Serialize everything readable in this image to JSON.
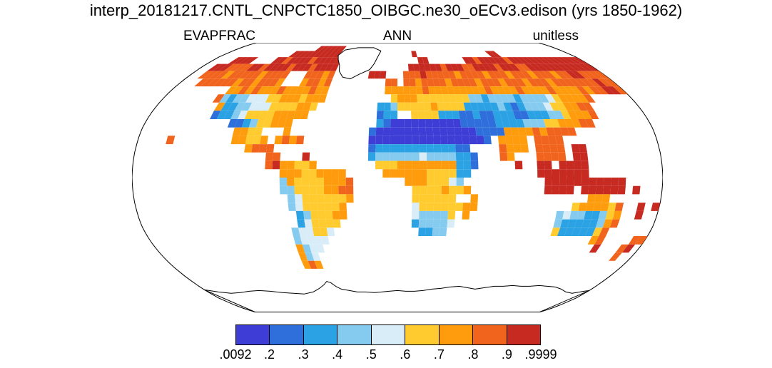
{
  "title": "interp_20181217.CNTL_CNPCTC1850_OIBGC.ne30_oECv3.edison (yrs 1850-1962)",
  "header": {
    "variable": "EVAPFRAC",
    "season": "ANN",
    "units": "unitless"
  },
  "chart_data": {
    "type": "heatmap",
    "title": "interp_20181217.CNTL_CNPCTC1850_OIBGC.ne30_oECv3.edison (yrs 1850-1962)",
    "variable": "EVAPFRAC",
    "season": "ANN",
    "units": "unitless",
    "projection": "robinson",
    "colorbar": {
      "levels": [
        ".0092",
        ".2",
        ".3",
        ".4",
        ".5",
        ".6",
        ".7",
        ".8",
        ".9",
        ".9999"
      ],
      "colors": [
        "#3E3ED6",
        "#2F6FDB",
        "#2BA2E3",
        "#85CBEF",
        "#D8EDF8",
        "#FFCB2E",
        "#FF9C0D",
        "#F1641E",
        "#C62A21"
      ]
    },
    "grid": {
      "lon_min": -180,
      "lon_step_deg": 5,
      "lat_max": 90,
      "lat_step_deg": 5,
      "cell_encoding": "each row = 6 groups of 12 chars (72 columns of 5 deg, lon -180..180; rows lat 90..-90); '.' = ocean/ice/no data; digits 1-9 = colorbar bin index from lowest (.0092-.2, dark blue) to highest (.9-.9999, red)",
      "rows": [
        [
          "............",
          "............",
          "............",
          "............",
          "............",
          "............"
        ],
        [
          "............",
          "......999999",
          "............",
          "............",
          "............",
          "............"
        ],
        [
          "............",
          "..9999999999",
          "............",
          "...9........",
          ".......99...",
          "............"
        ],
        [
          "....9999....",
          "998999989999",
          "9...........",
          "....99......",
          ".99899999899",
          "999999999999"
        ],
        [
          "..9998888998",
          "999989998999",
          "9...........",
          "..9999998999",
          "889999899988",
          "999999999999"
        ],
        [
          "..8888788888",
          "78888...8887",
          "8......999..",
          ".88898888878",
          "888788878887",
          "888788998888"
        ],
        [
          "...888888788",
          "78887...7887",
          "8.........88",
          ".88788887888",
          "878887888788",
          "878888888988"
        ],
        [
          ".........778",
          "787778777787",
          "7.........77",
          "777787777777",
          "778777787777",
          "877778788998"
        ],
        [
          "........8434",
          "455566777677",
          "7..........6",
          "777666666664",
          "434444344445",
          "677778......"
        ],
        [
          ".........733",
          "445556666776",
          ".........334",
          "666667666633",
          "333432344456",
          "67788......."
        ],
        [
          ".........233",
          "45666677777.",
          ".........233",
          "..6666333223",
          "223332233344",
          "67778......."
        ],
        [
          "............",
          "223466777...",
          ".........321",
          "111111111222",
          "223333444667",
          "7788........"
        ],
        [
          "............",
          ".7766...7...",
          "........2111",
          "111111111112",
          "222777787888",
          "8..........."
        ],
        [
          "....8.......",
          ".77667.7878.",
          "........1111",
          "111111111111",
          "2.7777.8888.",
          "............"
        ],
        [
          "............",
          "...7888.....",
          "........2333",
          "3333333322..",
          "..8777.8888.",
          "99.........."
        ],
        [
          "............",
          "......88...9",
          "........3444",
          "44454444332.",
          "..87...8888.",
          "99.........."
        ],
        [
          "............",
          "......897766",
          "7........666",
          "77777777332.",
          "....9..99.99",
          "99.........."
        ],
        [
          "............",
          "........7776",
          "67777.....77",
          "7777666633..",
          ".......99999",
          "99.........."
        ],
        [
          "............",
          "........4766",
          "667778......",
          ".77766654...",
          "........9999",
          "9999999....."
        ],
        [
          "............",
          "........4466",
          "667788......",
          "..66667667..",
          "........9999",
          ".999999.9..."
        ],
        [
          "............",
          ".........456",
          "666667......",
          "..666666..7.",
          "............",
          "..777......."
        ],
        [
          "............",
          ".........456",
          "66667.......",
          "..566666677.",
          "............",
          "6777768..9.9"
        ],
        [
          "............",
          "..........34",
          "66677.......",
          "..544446.7..",
          "..........45",
          "4433467..9.."
        ],
        [
          "............",
          "..........35",
          "6666........",
          "..344445....",
          "..........43",
          "3333478....."
        ],
        [
          "............",
          ".........455",
          "665.........",
          "...3344.....",
          "..........63",
          "333368......"
        ],
        [
          "............",
          ".........455",
          "55..........",
          "............",
          "............",
          "....78....88"
        ],
        [
          "............",
          ".........745",
          "5...........",
          "............",
          "............",
          ".....9...89."
        ],
        [
          "............",
          ".........745",
          "............",
          "............",
          "............",
          ".........8.."
        ],
        [
          "............",
          ".........787",
          "............",
          "............",
          "............",
          "............"
        ],
        [
          "............",
          "............",
          "............",
          "............",
          "............",
          "............"
        ],
        [
          "............",
          "............",
          "............",
          "............",
          "............",
          "............"
        ],
        [
          "............",
          "............",
          "............",
          "............",
          "............",
          "............"
        ],
        [
          "............",
          "............",
          "............",
          "............",
          "............",
          "............"
        ],
        [
          "............",
          "............",
          "............",
          "............",
          "............",
          "............"
        ],
        [
          "............",
          "............",
          "............",
          "............",
          "............",
          "............"
        ],
        [
          "............",
          "............",
          "............",
          "............",
          "............",
          "............"
        ]
      ]
    }
  }
}
